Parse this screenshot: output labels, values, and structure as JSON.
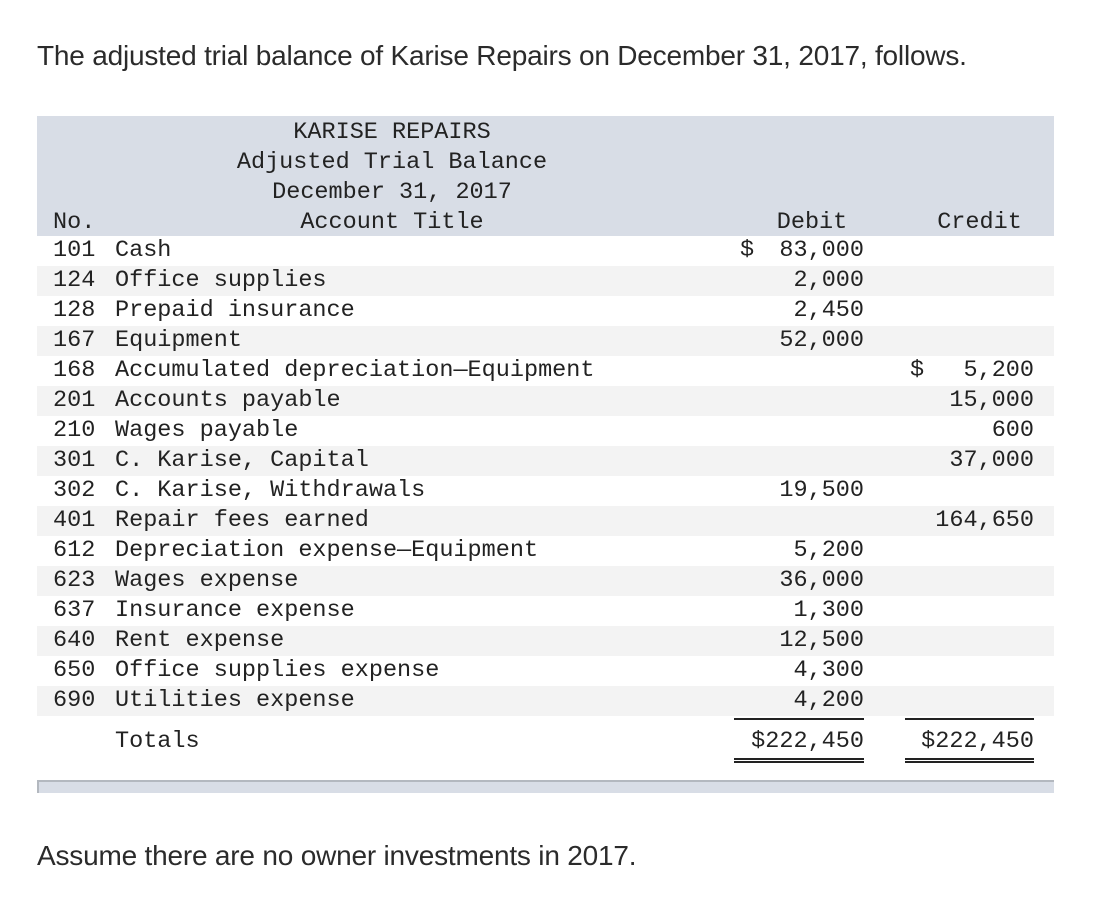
{
  "intro_text": "The adjusted trial balance of Karise Repairs on December 31, 2017, follows.",
  "table": {
    "company": "KARISE REPAIRS",
    "report": "Adjusted Trial Balance",
    "date": "December 31, 2017",
    "columns": {
      "no": "No.",
      "title": "Account Title",
      "debit": "Debit",
      "credit": "Credit"
    },
    "rows": [
      {
        "no": "101",
        "account": "Cash",
        "debit": "83,000",
        "debit_prefix": "$",
        "credit": "",
        "credit_prefix": ""
      },
      {
        "no": "124",
        "account": "Office supplies",
        "debit": "2,000",
        "debit_prefix": "",
        "credit": "",
        "credit_prefix": ""
      },
      {
        "no": "128",
        "account": "Prepaid insurance",
        "debit": "2,450",
        "debit_prefix": "",
        "credit": "",
        "credit_prefix": ""
      },
      {
        "no": "167",
        "account": "Equipment",
        "debit": "52,000",
        "debit_prefix": "",
        "credit": "",
        "credit_prefix": ""
      },
      {
        "no": "168",
        "account": "Accumulated depreciation—Equipment",
        "debit": "",
        "debit_prefix": "",
        "credit": "5,200",
        "credit_prefix": "$"
      },
      {
        "no": "201",
        "account": "Accounts payable",
        "debit": "",
        "debit_prefix": "",
        "credit": "15,000",
        "credit_prefix": ""
      },
      {
        "no": "210",
        "account": "Wages payable",
        "debit": "",
        "debit_prefix": "",
        "credit": "600",
        "credit_prefix": ""
      },
      {
        "no": "301",
        "account": "C. Karise, Capital",
        "debit": "",
        "debit_prefix": "",
        "credit": "37,000",
        "credit_prefix": ""
      },
      {
        "no": "302",
        "account": "C. Karise, Withdrawals",
        "debit": "19,500",
        "debit_prefix": "",
        "credit": "",
        "credit_prefix": ""
      },
      {
        "no": "401",
        "account": "Repair fees earned",
        "debit": "",
        "debit_prefix": "",
        "credit": "164,650",
        "credit_prefix": ""
      },
      {
        "no": "612",
        "account": "Depreciation expense—Equipment",
        "debit": "5,200",
        "debit_prefix": "",
        "credit": "",
        "credit_prefix": ""
      },
      {
        "no": "623",
        "account": "Wages expense",
        "debit": "36,000",
        "debit_prefix": "",
        "credit": "",
        "credit_prefix": ""
      },
      {
        "no": "637",
        "account": "Insurance expense",
        "debit": "1,300",
        "debit_prefix": "",
        "credit": "",
        "credit_prefix": ""
      },
      {
        "no": "640",
        "account": "Rent expense",
        "debit": "12,500",
        "debit_prefix": "",
        "credit": "",
        "credit_prefix": ""
      },
      {
        "no": "650",
        "account": "Office supplies expense",
        "debit": "4,300",
        "debit_prefix": "",
        "credit": "",
        "credit_prefix": ""
      },
      {
        "no": "690",
        "account": "Utilities expense",
        "debit": "4,200",
        "debit_prefix": "",
        "credit": "",
        "credit_prefix": ""
      }
    ],
    "totals": {
      "label": "Totals",
      "debit": "$222,450",
      "credit": "$222,450"
    }
  },
  "outro_text": "Assume there are no owner investments in 2017."
}
